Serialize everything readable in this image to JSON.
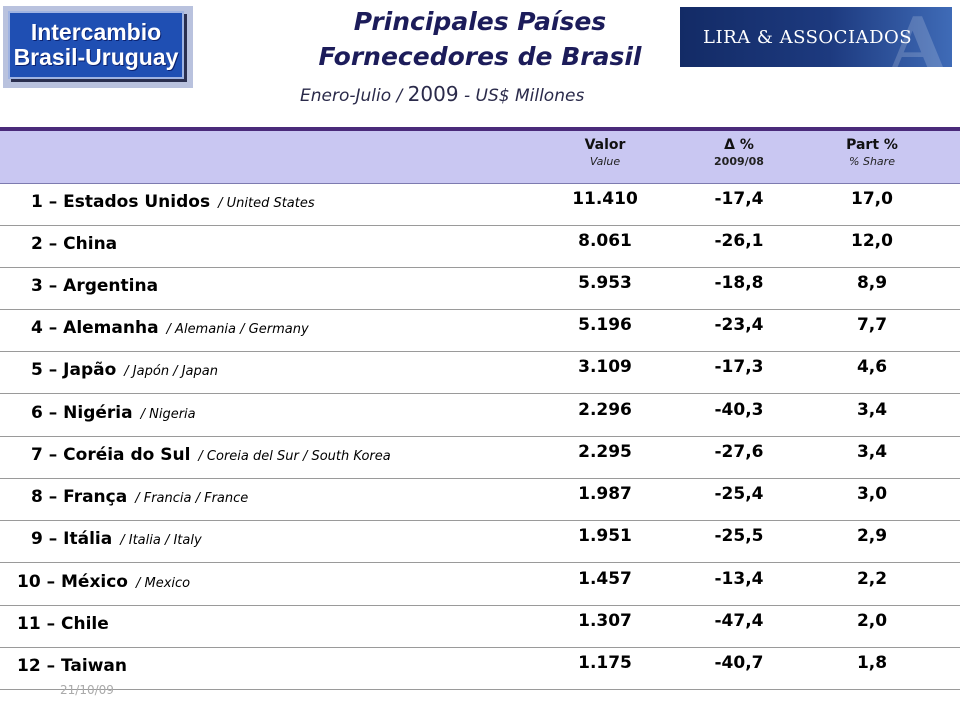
{
  "logo_left": {
    "line1": "Intercambio",
    "line2": "Brasil-Uruguay"
  },
  "logo_right": {
    "text": "LIRA & ASSOCIADOS",
    "mark": "A"
  },
  "title": {
    "line1": "Principales Países",
    "line2": "Fornecedores de Brasil"
  },
  "subtitle": {
    "pre": "Enero-Julio / ",
    "year": "2009",
    "post": " -  US$ Millones"
  },
  "header": {
    "col1": {
      "main": "Valor",
      "sub": "Value"
    },
    "col2": {
      "main": "Δ %",
      "sub": "2009/08"
    },
    "col3": {
      "main": "Part %",
      "sub": "% Share"
    }
  },
  "rows": [
    {
      "name": "1 – Estados Unidos",
      "alt": "/ United States",
      "value": "11.410",
      "delta": "-17,4",
      "share": "17,0"
    },
    {
      "name": "2 – China",
      "alt": "",
      "value": "8.061",
      "delta": "-26,1",
      "share": "12,0"
    },
    {
      "name": "3 – Argentina",
      "alt": "",
      "value": "5.953",
      "delta": "-18,8",
      "share": "8,9"
    },
    {
      "name": "4 – Alemanha",
      "alt": "/ Alemania / Germany",
      "value": "5.196",
      "delta": "-23,4",
      "share": "7,7"
    },
    {
      "name": "5 – Japão",
      "alt": "/ Japón / Japan",
      "value": "3.109",
      "delta": "-17,3",
      "share": "4,6"
    },
    {
      "name": "6 – Nigéria",
      "alt": "/ Nigeria",
      "value": "2.296",
      "delta": "-40,3",
      "share": "3,4"
    },
    {
      "name": "7 – Coréia do Sul",
      "alt": "/ Coreia del Sur / South Korea",
      "value": "2.295",
      "delta": "-27,6",
      "share": "3,4"
    },
    {
      "name": "8 – França",
      "alt": "/ Francia / France",
      "value": "1.987",
      "delta": "-25,4",
      "share": "3,0"
    },
    {
      "name": "9 – Itália",
      "alt": "/ Italia / Italy",
      "value": "1.951",
      "delta": "-25,5",
      "share": "2,9"
    },
    {
      "name": "10 – México",
      "alt": "/ Mexico",
      "value": "1.457",
      "delta": "-13,4",
      "share": "2,2"
    },
    {
      "name": "11 – Chile",
      "alt": "",
      "value": "1.307",
      "delta": "-47,4",
      "share": "2,0"
    },
    {
      "name": "12 – Taiwan",
      "alt": "",
      "value": "1.175",
      "delta": "-40,7",
      "share": "1,8"
    }
  ],
  "footer": {
    "date": "21/10/09"
  }
}
